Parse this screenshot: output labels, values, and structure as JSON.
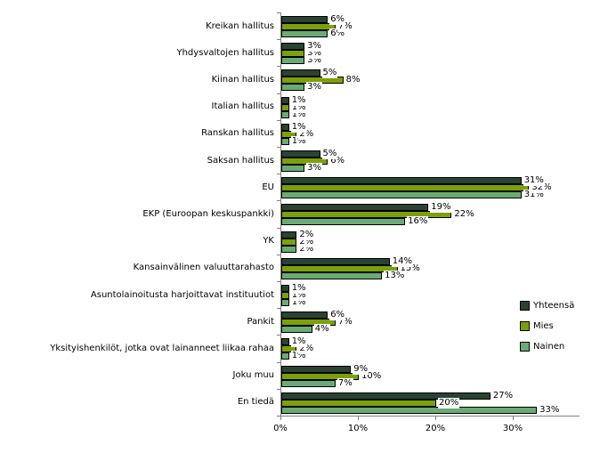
{
  "chart_data": {
    "type": "bar",
    "orientation": "horizontal",
    "title": "",
    "categories": [
      "Kreikan hallitus",
      "Yhdysvaltojen hallitus",
      "Kiinan hallitus",
      "Italian hallitus",
      "Ranskan hallitus",
      "Saksan hallitus",
      "EU",
      "EKP (Euroopan keskuspankki)",
      "YK",
      "Kansainvälinen valuuttarahasto",
      "Asuntolainoitusta harjoittavat instituutiot",
      "Pankit",
      "Yksityishenkilöt, jotka ovat lainanneet liikaa rahaa",
      "Joku muu",
      "En tiedä"
    ],
    "series": [
      {
        "name": "Yhteensä",
        "color": "#2A4332",
        "values": [
          6,
          3,
          5,
          1,
          1,
          5,
          31,
          19,
          2,
          14,
          1,
          6,
          1,
          9,
          27
        ]
      },
      {
        "name": "Mies",
        "color": "#7CA00A",
        "values": [
          7,
          3,
          8,
          1,
          2,
          6,
          32,
          22,
          2,
          15,
          1,
          7,
          2,
          10,
          20
        ]
      },
      {
        "name": "Nainen",
        "color": "#6BAB73",
        "values": [
          6,
          3,
          3,
          1,
          1,
          3,
          31,
          16,
          2,
          13,
          1,
          4,
          1,
          7,
          33
        ]
      }
    ],
    "value_suffix": "%",
    "x_axis": {
      "tick_labels": [
        "0%",
        "10%",
        "20%",
        "30%"
      ],
      "tick_values": [
        0,
        10,
        20,
        30
      ],
      "min": 0,
      "max": 38.5
    },
    "legend_position": "right",
    "grid": false,
    "axis_color": "#808080",
    "bar_border_color": "#000000",
    "background": "#FFFFFF"
  }
}
